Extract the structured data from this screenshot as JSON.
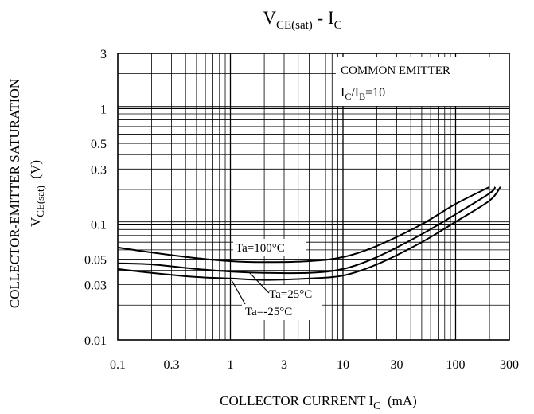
{
  "chart_data": {
    "type": "line",
    "scale": {
      "x": "log",
      "y": "log"
    },
    "title": {
      "main": "V",
      "main_sub": "CE(sat)",
      "sep": " - ",
      "rhs": "I",
      "rhs_sub": "C"
    },
    "xlabel": {
      "text": "COLLECTOR CURRENT I",
      "sub": "C",
      "unit": "(mA)"
    },
    "ylabel": {
      "line1": "COLLECTOR-EMITTER SATURATION",
      "line2_main": "V",
      "line2_sub": "CE(sat)",
      "line2_unit": "(V)"
    },
    "xlim": [
      0.1,
      300
    ],
    "ylim": [
      0.01,
      3
    ],
    "x_ticks": [
      {
        "value": 0.1,
        "label": "0.1"
      },
      {
        "value": 0.3,
        "label": "0.3"
      },
      {
        "value": 1,
        "label": "1"
      },
      {
        "value": 3,
        "label": "3"
      },
      {
        "value": 10,
        "label": "10"
      },
      {
        "value": 30,
        "label": "30"
      },
      {
        "value": 100,
        "label": "100"
      },
      {
        "value": 300,
        "label": "300"
      }
    ],
    "y_ticks": [
      {
        "value": 0.01,
        "label": "0.01"
      },
      {
        "value": 0.03,
        "label": "0.03"
      },
      {
        "value": 0.05,
        "label": "0.05"
      },
      {
        "value": 0.1,
        "label": "0.1"
      },
      {
        "value": 0.3,
        "label": "0.3"
      },
      {
        "value": 0.5,
        "label": "0.5"
      },
      {
        "value": 1,
        "label": "1"
      },
      {
        "value": 3,
        "label": "3"
      }
    ],
    "grid": true,
    "annotation_box": {
      "line1": "COMMON EMITTER",
      "line2_a": "I",
      "line2_a_sub": "C",
      "line2_b": "/I",
      "line2_b_sub": "B",
      "line2_c": "=10"
    },
    "series": [
      {
        "name": "Ta=100°C",
        "x": [
          0.1,
          0.2,
          0.5,
          1,
          2,
          5,
          10,
          20,
          50,
          100,
          200
        ],
        "y": [
          0.063,
          0.057,
          0.051,
          0.048,
          0.047,
          0.048,
          0.052,
          0.065,
          0.1,
          0.15,
          0.21
        ]
      },
      {
        "name": "Ta=25°C",
        "x": [
          0.1,
          0.2,
          0.5,
          1,
          2,
          5,
          10,
          20,
          50,
          100,
          200,
          225
        ],
        "y": [
          0.046,
          0.045,
          0.041,
          0.039,
          0.038,
          0.038,
          0.041,
          0.052,
          0.082,
          0.122,
          0.185,
          0.21
        ]
      },
      {
        "name": "Ta=-25°C",
        "x": [
          0.1,
          0.2,
          0.5,
          1,
          2,
          5,
          10,
          20,
          50,
          100,
          200,
          250
        ],
        "y": [
          0.041,
          0.038,
          0.035,
          0.034,
          0.033,
          0.034,
          0.036,
          0.045,
          0.07,
          0.105,
          0.16,
          0.21
        ]
      }
    ],
    "labels": [
      {
        "text": "Ta=100°C",
        "series": 0
      },
      {
        "text": "Ta=25°C",
        "series": 1
      },
      {
        "text": "Ta=-25°C",
        "series": 2
      }
    ]
  }
}
